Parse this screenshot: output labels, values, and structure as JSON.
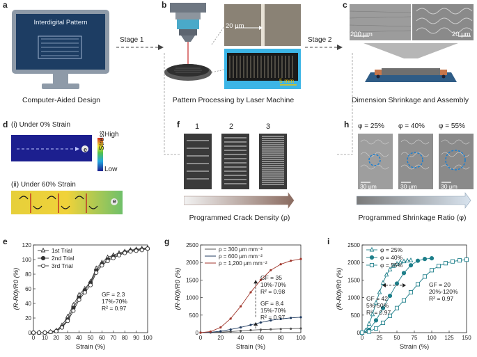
{
  "panels": {
    "a": {
      "letter": "a",
      "screen_title": "Interdigital Pattern",
      "caption": "Computer-Aided Design"
    },
    "b": {
      "letter": "b",
      "scale_top": "20 μm",
      "scale_bottom": "5 mm",
      "caption": "Pattern Processing by Laser Machine"
    },
    "c": {
      "letter": "c",
      "scale_left": "200 μm",
      "scale_right": "20 μm",
      "caption": "Dimension Shrinkage and Assembly"
    },
    "d": {
      "letter": "d",
      "label_i": "(i) Under 0% Strain",
      "label_ii": "(ii) Under 60% Strain",
      "colorbar_high": "High",
      "colorbar_low": "Low",
      "colorbar_title": "Stress",
      "electron": "e"
    },
    "f": {
      "letter": "f",
      "numbers": [
        "1",
        "2",
        "3"
      ],
      "arrow_label": "Programmed Crack Density (ρ)"
    },
    "h": {
      "letter": "h",
      "phis": [
        "φ = 25%",
        "φ = 40%",
        "φ = 55%"
      ],
      "scale": "30 μm",
      "arrow_label": "Programmed Shrinkage Ratio (φ)"
    },
    "e": {
      "letter": "e"
    },
    "g": {
      "letter": "g"
    },
    "i": {
      "letter": "i"
    }
  },
  "stages": {
    "stage1": "Stage 1",
    "stage2": "Stage 2"
  },
  "chart_data": [
    {
      "id": "e",
      "type": "line",
      "xlabel": "Strain (%)",
      "ylabel": "(R-R0)/R0 (%)",
      "xlim": [
        0,
        100
      ],
      "ylim": [
        0,
        120
      ],
      "xticks": [
        0,
        10,
        20,
        30,
        40,
        50,
        60,
        70,
        80,
        90,
        100
      ],
      "yticks": [
        0,
        20,
        40,
        60,
        80,
        100,
        120
      ],
      "annotation": [
        "GF = 2.3",
        "17%-70%",
        "R² = 0.97"
      ],
      "series": [
        {
          "name": "1st Trial",
          "marker": "open-triangle",
          "x": [
            0,
            5,
            10,
            15,
            20,
            25,
            30,
            35,
            40,
            45,
            50,
            55,
            60,
            65,
            70,
            75,
            80,
            85,
            90,
            95,
            100
          ],
          "y": [
            0,
            0,
            0,
            1,
            3,
            10,
            22,
            38,
            52,
            60,
            70,
            88,
            96,
            103,
            106,
            109,
            111,
            113,
            114,
            115,
            116
          ]
        },
        {
          "name": "2nd Trial",
          "marker": "filled-circle",
          "x": [
            0,
            5,
            10,
            15,
            20,
            25,
            30,
            35,
            40,
            45,
            50,
            55,
            60,
            65,
            70,
            75,
            80,
            85,
            90,
            95,
            100
          ],
          "y": [
            0,
            0,
            0,
            1,
            2,
            8,
            18,
            34,
            48,
            58,
            68,
            85,
            94,
            100,
            104,
            107,
            110,
            112,
            113,
            114,
            115
          ]
        },
        {
          "name": "3rd Trial",
          "marker": "open-circle",
          "x": [
            0,
            5,
            10,
            15,
            20,
            25,
            30,
            35,
            40,
            45,
            50,
            55,
            60,
            65,
            70,
            75,
            80,
            85,
            90,
            95,
            100
          ],
          "y": [
            0,
            0,
            0,
            1,
            2,
            7,
            16,
            30,
            45,
            55,
            65,
            82,
            92,
            98,
            102,
            106,
            109,
            111,
            112,
            113,
            115
          ]
        }
      ]
    },
    {
      "id": "g",
      "type": "line",
      "xlabel": "Strain (%)",
      "ylabel": "(R-R0)/R0 (%)",
      "xlim": [
        0,
        100
      ],
      "ylim": [
        0,
        2500
      ],
      "xticks": [
        0,
        20,
        40,
        60,
        80,
        100
      ],
      "yticks": [
        0,
        500,
        1000,
        1500,
        2000,
        2500
      ],
      "annotations": [
        [
          "GF = 35",
          "10%-70%",
          "R² = 0.98"
        ],
        [
          "GF = 8.4",
          "15%-70%",
          "R² = 0.97"
        ]
      ],
      "series": [
        {
          "name": "ρ = 300 μm mm⁻²",
          "color": "#555555",
          "x": [
            0,
            10,
            20,
            30,
            40,
            50,
            60,
            70,
            80,
            90,
            100
          ],
          "y": [
            0,
            5,
            15,
            30,
            50,
            70,
            85,
            95,
            105,
            112,
            120
          ]
        },
        {
          "name": "ρ = 600 μm mm⁻²",
          "color": "#1f3a5f",
          "x": [
            0,
            10,
            20,
            30,
            40,
            50,
            60,
            70,
            80,
            90,
            100
          ],
          "y": [
            0,
            10,
            40,
            90,
            150,
            220,
            290,
            350,
            390,
            420,
            440
          ]
        },
        {
          "name": "ρ = 1,200 μm mm⁻²",
          "color": "#a0362b",
          "x": [
            0,
            10,
            20,
            30,
            40,
            50,
            60,
            70,
            80,
            90,
            100
          ],
          "y": [
            0,
            30,
            150,
            400,
            750,
            1150,
            1500,
            1780,
            1950,
            2050,
            2100
          ]
        }
      ]
    },
    {
      "id": "i",
      "type": "line",
      "xlabel": "Strain (%)",
      "ylabel": "(R-R0)/R0 (%)",
      "xlim": [
        0,
        150
      ],
      "ylim": [
        0,
        2500
      ],
      "xticks": [
        0,
        25,
        50,
        75,
        100,
        125,
        150
      ],
      "yticks": [
        0,
        500,
        1000,
        1500,
        2000,
        2500
      ],
      "annotations": [
        [
          "GF = 42",
          "5%-50%",
          "R² = 0.97"
        ],
        [
          "GF = 20",
          "20%-120%",
          "R² = 0.97"
        ]
      ],
      "series": [
        {
          "name": "φ = 25%",
          "marker": "open-triangle",
          "color": "#1e7f8a",
          "x": [
            0,
            5,
            10,
            15,
            20,
            25,
            30,
            35,
            40,
            45,
            50,
            55,
            60,
            65,
            70
          ],
          "y": [
            0,
            60,
            250,
            520,
            850,
            1150,
            1420,
            1650,
            1800,
            1900,
            1960,
            2000,
            2030,
            2050,
            2060
          ]
        },
        {
          "name": "φ = 40%",
          "marker": "filled-circle",
          "color": "#1e7f8a",
          "x": [
            0,
            10,
            20,
            30,
            40,
            50,
            60,
            70,
            80,
            90,
            100
          ],
          "y": [
            0,
            80,
            350,
            700,
            1050,
            1400,
            1700,
            1920,
            2050,
            2100,
            2120
          ]
        },
        {
          "name": "φ = 55%",
          "marker": "open-square",
          "color": "#1e7f8a",
          "x": [
            0,
            10,
            20,
            30,
            40,
            50,
            60,
            70,
            80,
            90,
            100,
            110,
            120,
            130,
            140,
            150
          ],
          "y": [
            0,
            30,
            120,
            280,
            480,
            700,
            920,
            1150,
            1380,
            1600,
            1780,
            1900,
            1980,
            2030,
            2060,
            2080
          ]
        }
      ]
    }
  ]
}
